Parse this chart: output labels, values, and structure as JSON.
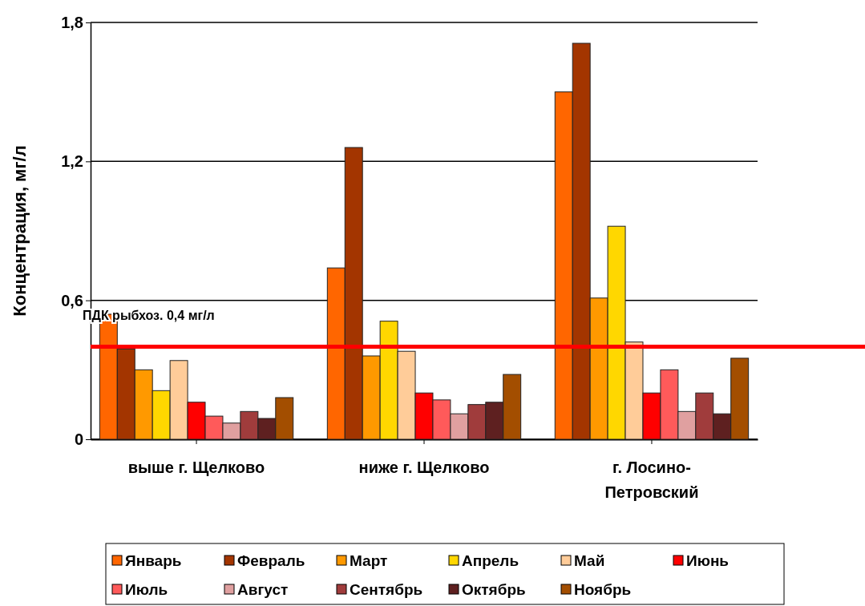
{
  "chart_data": {
    "type": "bar",
    "ylabel": "Концентрация, мг/л",
    "categories": [
      "выше г. Щелково",
      "ниже г. Щелково",
      "г. Лосино-Петровский"
    ],
    "series": [
      {
        "name": "Январь",
        "color": "#ff6600",
        "values": [
          0.54,
          0.74,
          1.5
        ]
      },
      {
        "name": "Февраль",
        "color": "#a33500",
        "values": [
          0.39,
          1.26,
          1.71
        ]
      },
      {
        "name": "Март",
        "color": "#ff9900",
        "values": [
          0.3,
          0.36,
          0.61
        ]
      },
      {
        "name": "Апрель",
        "color": "#ffd700",
        "values": [
          0.21,
          0.51,
          0.92
        ]
      },
      {
        "name": "Май",
        "color": "#ffcc99",
        "values": [
          0.34,
          0.38,
          0.42
        ]
      },
      {
        "name": "Июнь",
        "color": "#ff0000",
        "values": [
          0.16,
          0.2,
          0.2
        ]
      },
      {
        "name": "Июль",
        "color": "#ff5a5a",
        "values": [
          0.1,
          0.17,
          0.3
        ]
      },
      {
        "name": "Август",
        "color": "#e0a0a0",
        "values": [
          0.07,
          0.11,
          0.12
        ]
      },
      {
        "name": "Сентябрь",
        "color": "#a03c3c",
        "values": [
          0.12,
          0.15,
          0.2
        ]
      },
      {
        "name": "Октябрь",
        "color": "#5e2020",
        "values": [
          0.09,
          0.16,
          0.11
        ]
      },
      {
        "name": "Ноябрь",
        "color": "#a34e00",
        "values": [
          0.18,
          0.28,
          0.35
        ]
      }
    ],
    "ylim": [
      0,
      1.8
    ],
    "yticks": [
      0,
      {
        "value": 0.6,
        "label": "0,6"
      },
      {
        "value": 1.2,
        "label": "1,2"
      },
      {
        "value": 1.8,
        "label": "1,8"
      }
    ],
    "grid": "y",
    "legend": "bottom",
    "ref_lines": [
      {
        "axis": "y",
        "value": 0.4,
        "label": "ПДК рыбхоз. 0,4 мг/л",
        "color": "#ff0000"
      }
    ]
  }
}
